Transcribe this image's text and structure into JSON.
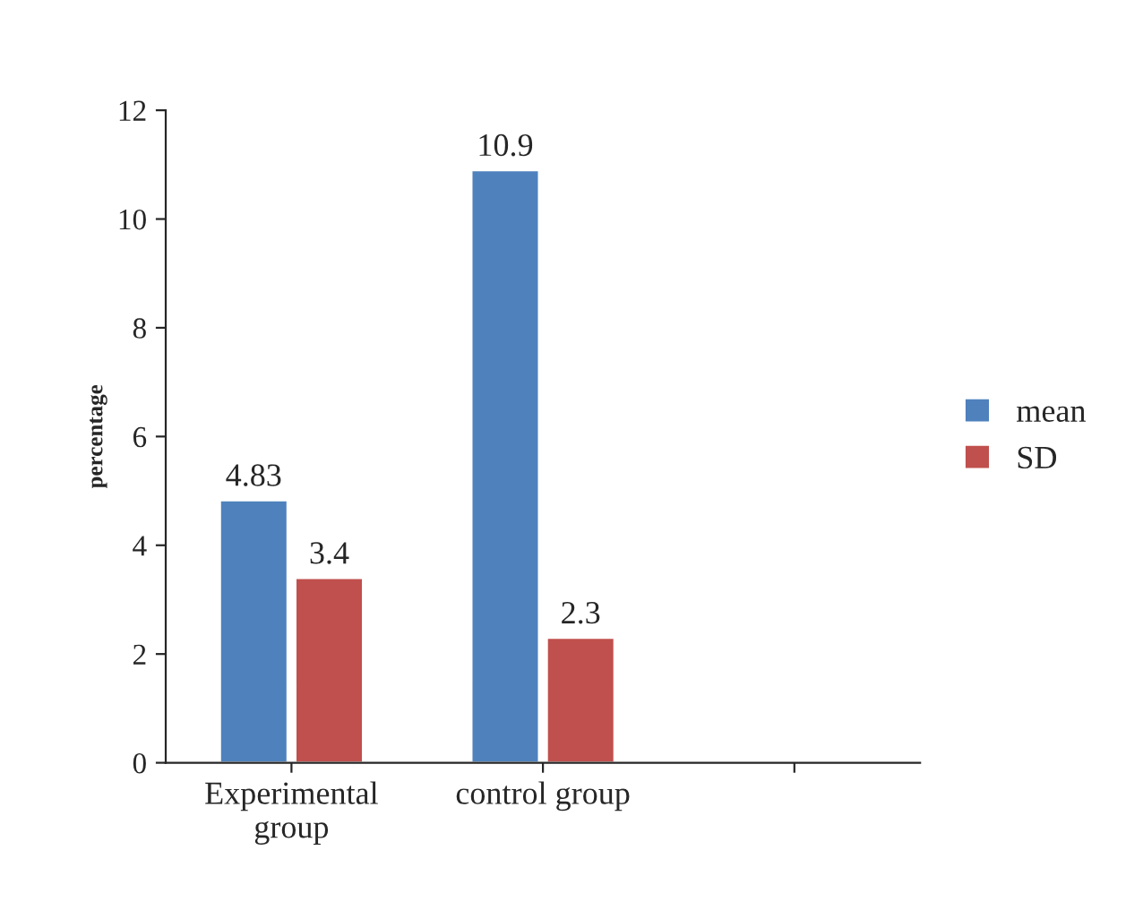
{
  "chart_data": {
    "type": "bar",
    "ylabel": "percentage",
    "categories": [
      "Experimental\ngroup",
      "control group",
      null
    ],
    "series": [
      {
        "name": "mean",
        "color": "#4f81bd",
        "values": [
          4.83,
          10.9,
          null
        ]
      },
      {
        "name": "SD",
        "color": "#c0504d",
        "values": [
          3.4,
          2.3,
          null
        ]
      }
    ],
    "ylim": [
      0,
      12
    ],
    "yticks": [
      0,
      2,
      4,
      6,
      8,
      10,
      12
    ],
    "grid": false,
    "legend": "right",
    "data_labels": true
  }
}
